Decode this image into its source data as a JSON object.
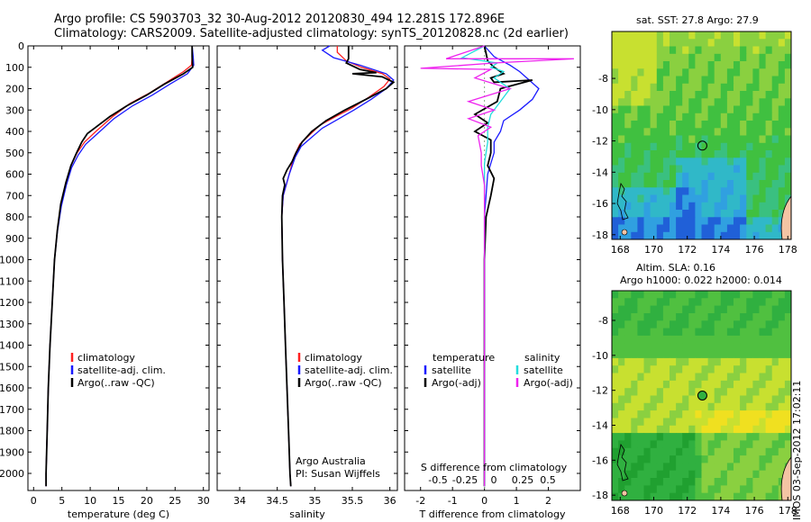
{
  "header": {
    "title_line1": "Argo profile: CS 5903703_32 30-Aug-2012 20120830_494 12.281S 172.896E",
    "title_line2": "Climatology: CARS2009. Satellite-adjusted climatology: synTS_20120828.nc (2d earlier)"
  },
  "colors": {
    "climatology": "#ff2020",
    "satellite_clim": "#1a1aff",
    "argo": "#000000",
    "salinity_sat": "#22dddd",
    "salinity_argo": "#ee22ee",
    "land": "#f4c4a4"
  },
  "credits": {
    "line1": "Argo Australia",
    "line2": "PI: Susan Wijffels"
  },
  "stamp": "IMOS 03-Sep-2012 17:02:11",
  "chart_data": [
    {
      "type": "line",
      "xlabel": "temperature (deg C)",
      "ylabel": "",
      "xlim": [
        -1,
        31
      ],
      "ylim": [
        2080,
        0
      ],
      "grid": false,
      "xticks": [
        "0",
        "5",
        "10",
        "15",
        "20",
        "25",
        "30"
      ],
      "yticks": [
        "0",
        "100",
        "200",
        "300",
        "400",
        "500",
        "600",
        "700",
        "800",
        "900",
        "1000",
        "1100",
        "1200",
        "1300",
        "1400",
        "1500",
        "1600",
        "1700",
        "1800",
        "1900",
        "2000"
      ],
      "legend": [
        "climatology",
        "satellite-adj. clim.",
        "Argo(..raw -QC)"
      ],
      "series": [
        {
          "name": "climatology",
          "color": "#ff2020",
          "points": [
            [
              28,
              0
            ],
            [
              28,
              50
            ],
            [
              27.9,
              90
            ],
            [
              26.5,
              120
            ],
            [
              23.5,
              170
            ],
            [
              20.5,
              220
            ],
            [
              17,
              270
            ],
            [
              14,
              330
            ],
            [
              11,
              400
            ],
            [
              9,
              450
            ],
            [
              7.7,
              500
            ],
            [
              6.6,
              560
            ],
            [
              5.7,
              640
            ],
            [
              4.8,
              740
            ],
            [
              4.2,
              860
            ],
            [
              3.7,
              1000
            ],
            [
              3.3,
              1200
            ],
            [
              2.9,
              1400
            ],
            [
              2.6,
              1600
            ],
            [
              2.4,
              1800
            ],
            [
              2.2,
              2000
            ],
            [
              2.2,
              2060
            ]
          ]
        },
        {
          "name": "satellite-adj. clim.",
          "color": "#1a1aff",
          "points": [
            [
              28,
              0
            ],
            [
              28.2,
              50
            ],
            [
              28.3,
              90
            ],
            [
              27.2,
              130
            ],
            [
              24,
              180
            ],
            [
              21,
              230
            ],
            [
              17.5,
              280
            ],
            [
              14.2,
              340
            ],
            [
              11.3,
              410
            ],
            [
              9.2,
              460
            ],
            [
              7.9,
              510
            ],
            [
              6.7,
              570
            ],
            [
              5.8,
              650
            ],
            [
              4.9,
              750
            ],
            [
              4.2,
              870
            ],
            [
              3.7,
              1000
            ],
            [
              3.3,
              1200
            ],
            [
              2.9,
              1400
            ],
            [
              2.6,
              1600
            ],
            [
              2.4,
              1800
            ],
            [
              2.2,
              2000
            ],
            [
              2.2,
              2060
            ]
          ]
        },
        {
          "name": "Argo(..raw -QC)",
          "color": "#000000",
          "points": [
            [
              28,
              0
            ],
            [
              28,
              50
            ],
            [
              28.1,
              100
            ],
            [
              26.5,
              130
            ],
            [
              23,
              180
            ],
            [
              20,
              230
            ],
            [
              16.5,
              280
            ],
            [
              13.5,
              330
            ],
            [
              11,
              380
            ],
            [
              9.5,
              410
            ],
            [
              8.5,
              450
            ],
            [
              7.6,
              500
            ],
            [
              6.6,
              560
            ],
            [
              5.7,
              640
            ],
            [
              4.8,
              740
            ],
            [
              4.2,
              860
            ],
            [
              3.7,
              1000
            ],
            [
              3.3,
              1200
            ],
            [
              2.9,
              1400
            ],
            [
              2.6,
              1600
            ],
            [
              2.4,
              1800
            ],
            [
              2.2,
              2000
            ],
            [
              2.2,
              2060
            ]
          ]
        }
      ]
    },
    {
      "type": "line",
      "xlabel": "salinity",
      "ylabel": "",
      "xlim": [
        33.7,
        36.1
      ],
      "ylim": [
        2080,
        0
      ],
      "grid": false,
      "xticks": [
        "34",
        "34.5",
        "35",
        "35.5",
        "36"
      ],
      "legend": [
        "climatology",
        "satellite-adj. clim.",
        "Argo(..raw -QC)"
      ],
      "series": [
        {
          "name": "climatology",
          "color": "#ff2020",
          "points": [
            [
              35.3,
              0
            ],
            [
              35.3,
              30
            ],
            [
              35.42,
              70
            ],
            [
              35.62,
              100
            ],
            [
              35.9,
              130
            ],
            [
              36.0,
              155
            ],
            [
              35.92,
              190
            ],
            [
              35.72,
              240
            ],
            [
              35.5,
              290
            ],
            [
              35.28,
              330
            ],
            [
              35.07,
              370
            ],
            [
              34.92,
              420
            ],
            [
              34.8,
              460
            ],
            [
              34.72,
              520
            ],
            [
              34.66,
              600
            ],
            [
              34.58,
              700
            ],
            [
              34.56,
              800
            ],
            [
              34.57,
              1000
            ],
            [
              34.59,
              1200
            ],
            [
              34.61,
              1400
            ],
            [
              34.63,
              1600
            ],
            [
              34.65,
              1800
            ],
            [
              34.67,
              2000
            ],
            [
              34.68,
              2060
            ]
          ]
        },
        {
          "name": "satellite-adj. clim.",
          "color": "#1a1aff",
          "points": [
            [
              35.2,
              0
            ],
            [
              35.1,
              20
            ],
            [
              35.25,
              55
            ],
            [
              35.6,
              90
            ],
            [
              35.95,
              130
            ],
            [
              36.05,
              160
            ],
            [
              35.95,
              200
            ],
            [
              35.75,
              250
            ],
            [
              35.52,
              300
            ],
            [
              35.3,
              345
            ],
            [
              35.1,
              385
            ],
            [
              34.95,
              430
            ],
            [
              34.82,
              470
            ],
            [
              34.74,
              520
            ],
            [
              34.66,
              600
            ],
            [
              34.58,
              700
            ],
            [
              34.56,
              800
            ],
            [
              34.57,
              1000
            ],
            [
              34.59,
              1200
            ],
            [
              34.61,
              1400
            ],
            [
              34.63,
              1600
            ],
            [
              34.65,
              1800
            ],
            [
              34.67,
              2000
            ],
            [
              34.68,
              2060
            ]
          ]
        },
        {
          "name": "Argo(..raw -QC)",
          "color": "#000000",
          "points": [
            [
              35.45,
              0
            ],
            [
              35.45,
              60
            ],
            [
              35.42,
              80
            ],
            [
              35.6,
              110
            ],
            [
              35.82,
              125
            ],
            [
              35.5,
              130
            ],
            [
              35.9,
              145
            ],
            [
              36.05,
              170
            ],
            [
              35.95,
              200
            ],
            [
              35.68,
              250
            ],
            [
              35.4,
              300
            ],
            [
              35.15,
              350
            ],
            [
              34.96,
              400
            ],
            [
              34.83,
              450
            ],
            [
              34.75,
              500
            ],
            [
              34.7,
              540
            ],
            [
              34.63,
              580
            ],
            [
              34.58,
              620
            ],
            [
              34.6,
              650
            ],
            [
              34.57,
              700
            ],
            [
              34.56,
              800
            ],
            [
              34.57,
              1000
            ],
            [
              34.59,
              1200
            ],
            [
              34.61,
              1400
            ],
            [
              34.63,
              1600
            ],
            [
              34.65,
              1800
            ],
            [
              34.67,
              2000
            ],
            [
              34.68,
              2060
            ]
          ]
        }
      ]
    },
    {
      "type": "line",
      "xlabel": "T difference from climatology",
      "ylabel": "",
      "title_bottom": "S difference from climatology",
      "xlim": [
        -2.5,
        3
      ],
      "ylim": [
        2080,
        0
      ],
      "grid": false,
      "xticks": [
        "-2",
        "-1",
        "0",
        "1",
        "2"
      ],
      "xticks_top": [
        "-0.5",
        "-0.25",
        "0",
        "0.25",
        "0.5"
      ],
      "legend": [
        "temperature",
        "satellite",
        "Argo(-adj)",
        "salinity",
        "satellite",
        "Argo(-adj)"
      ],
      "series": [
        {
          "name": "satellite",
          "color": "#1a1aff",
          "points": [
            [
              0,
              0
            ],
            [
              0.3,
              50
            ],
            [
              0.8,
              90
            ],
            [
              1.1,
              120
            ],
            [
              1.4,
              160
            ],
            [
              1.7,
              200
            ],
            [
              1.5,
              250
            ],
            [
              1.1,
              300
            ],
            [
              0.6,
              350
            ],
            [
              0.5,
              400
            ],
            [
              0.3,
              450
            ],
            [
              0.3,
              500
            ],
            [
              0.2,
              550
            ],
            [
              0.1,
              600
            ],
            [
              0.05,
              700
            ],
            [
              0,
              800
            ],
            [
              0,
              1000
            ],
            [
              0,
              1500
            ],
            [
              0,
              2000
            ],
            [
              0,
              2060
            ]
          ]
        },
        {
          "name": "Argo(-adj)",
          "color": "#000000",
          "points": [
            [
              0,
              0
            ],
            [
              0.1,
              70
            ],
            [
              0.3,
              100
            ],
            [
              0.6,
              130
            ],
            [
              0.2,
              150
            ],
            [
              0.3,
              170
            ],
            [
              1.5,
              160
            ],
            [
              0.5,
              200
            ],
            [
              0.4,
              260
            ],
            [
              -0.3,
              320
            ],
            [
              0.1,
              360
            ],
            [
              -0.3,
              400
            ],
            [
              0.2,
              440
            ],
            [
              0.2,
              500
            ],
            [
              0.1,
              560
            ],
            [
              0.3,
              620
            ],
            [
              0.2,
              700
            ],
            [
              0.05,
              800
            ],
            [
              0,
              1000
            ],
            [
              0,
              1500
            ],
            [
              0,
              2000
            ],
            [
              0,
              2060
            ]
          ]
        },
        {
          "name": "satellite",
          "color": "#22dddd",
          "points": [
            [
              0,
              0
            ],
            [
              -0.7,
              55
            ],
            [
              0.4,
              80
            ],
            [
              0.2,
              100
            ],
            [
              0.6,
              120
            ],
            [
              0.3,
              150
            ],
            [
              0.8,
              200
            ],
            [
              0.5,
              260
            ],
            [
              0.2,
              320
            ],
            [
              0.1,
              380
            ],
            [
              0.1,
              450
            ],
            [
              0,
              550
            ],
            [
              0,
              700
            ],
            [
              0,
              1000
            ],
            [
              0,
              1500
            ],
            [
              0,
              2000
            ],
            [
              0,
              2060
            ]
          ]
        },
        {
          "name": "Argo(-adj)",
          "color": "#ee22ee",
          "points": [
            [
              0,
              0
            ],
            [
              -1.2,
              60
            ],
            [
              2.8,
              60
            ],
            [
              0.3,
              80
            ],
            [
              -2,
              105
            ],
            [
              0.2,
              110
            ],
            [
              -0.3,
              150
            ],
            [
              0.8,
              200
            ],
            [
              -0.5,
              260
            ],
            [
              0.3,
              300
            ],
            [
              -0.5,
              340
            ],
            [
              0.2,
              380
            ],
            [
              -0.2,
              420
            ],
            [
              -0.1,
              500
            ],
            [
              -0.1,
              560
            ],
            [
              0,
              650
            ],
            [
              0,
              800
            ],
            [
              0,
              1000
            ],
            [
              0,
              1500
            ],
            [
              0,
              2000
            ],
            [
              0,
              2060
            ]
          ]
        }
      ]
    },
    {
      "type": "heatmap",
      "title": "sat. SST: 27.8 Argo: 27.9",
      "xlim": [
        167.5,
        178.2
      ],
      "ylim": [
        -18.3,
        -5
      ],
      "xticks": [
        "168",
        "170",
        "172",
        "174",
        "176",
        "178"
      ],
      "yticks": [
        "-8",
        "-10",
        "-12",
        "-14",
        "-16",
        "-18"
      ],
      "marker": {
        "lon": 172.9,
        "lat": -12.3
      }
    },
    {
      "type": "heatmap",
      "title": "Altim. SLA: 0.16",
      "subtitle": "Argo h1000: 0.022 h2000: 0.014",
      "xlim": [
        167.5,
        178.2
      ],
      "ylim": [
        -18.3,
        -6.3
      ],
      "xticks": [
        "168",
        "170",
        "172",
        "174",
        "176",
        "178"
      ],
      "yticks": [
        "-8",
        "-10",
        "-12",
        "-14",
        "-16",
        "-18"
      ],
      "marker": {
        "lon": 172.9,
        "lat": -12.3
      }
    }
  ]
}
